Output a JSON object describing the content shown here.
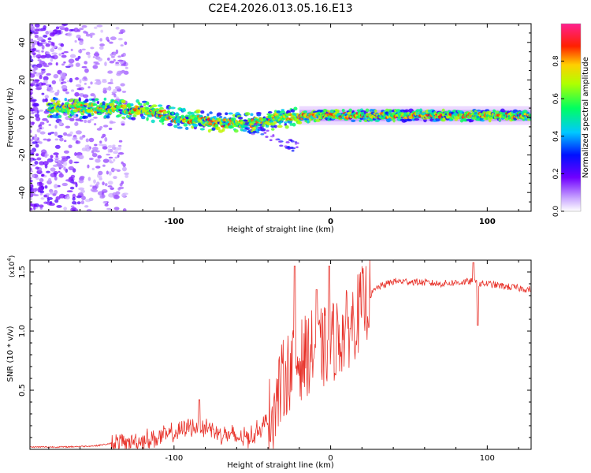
{
  "title": "C2E4.2026.013.05.16.E13",
  "chart_data": [
    {
      "type": "heatmap",
      "xlabel": "Height of straight line (km)",
      "ylabel": "Frequency (Hz)",
      "xlim": [
        -192,
        128
      ],
      "ylim": [
        -50,
        50
      ],
      "xticks": [
        -100,
        0,
        100
      ],
      "yticks": [
        -40,
        -20,
        0,
        20,
        40
      ],
      "colorbar": {
        "label": "Normalized spectral amplitude",
        "ticks": [
          "0.0",
          "0.2",
          "0.4",
          "0.6",
          "0.8"
        ],
        "tick_values": [
          0.0,
          0.2,
          0.4,
          0.6,
          0.8
        ],
        "range": [
          0,
          1
        ],
        "colors": [
          "#ffffff",
          "#8000ff",
          "#0000ff",
          "#00ffff",
          "#00ff00",
          "#ffff00",
          "#ff0000",
          "#ff00ff"
        ]
      },
      "ridge": {
        "x": [
          -180,
          -160,
          -140,
          -120,
          -100,
          -80,
          -60,
          -40,
          -30,
          -20,
          -10,
          0,
          20,
          40,
          60,
          80,
          100,
          128
        ],
        "frequency": [
          5,
          5,
          5,
          4,
          0,
          -2,
          -3,
          -2,
          0,
          0,
          1,
          1,
          1,
          1,
          1,
          1,
          1,
          1
        ]
      }
    },
    {
      "type": "line",
      "xlabel": "Height of straight line (km)",
      "ylabel": "SNR (10 * v/v)",
      "multiplier": "(x10",
      "multiplier_exp": "4",
      "multiplier_close": ")",
      "xlim": [
        -192,
        128
      ],
      "ylim": [
        0,
        1.6
      ],
      "xticks": [
        -100,
        0,
        100
      ],
      "yticks": [
        0.5,
        1.0,
        1.5
      ],
      "ytick_labels": [
        "0.5",
        "1.0",
        "1.5"
      ],
      "series": [
        {
          "name": "SNR",
          "color": "#e8342c",
          "x": [
            -192,
            -170,
            -150,
            -140,
            -130,
            -120,
            -110,
            -100,
            -95,
            -90,
            -85,
            -80,
            -75,
            -70,
            -65,
            -60,
            -55,
            -50,
            -45,
            -40,
            -35,
            -30,
            -25,
            -20,
            -15,
            -10,
            -5,
            0,
            5,
            10,
            15,
            20,
            25,
            30,
            40,
            50,
            60,
            70,
            80,
            90,
            95,
            100,
            110,
            128
          ],
          "y": [
            0.02,
            0.02,
            0.03,
            0.05,
            0.06,
            0.08,
            0.1,
            0.13,
            0.16,
            0.2,
            0.18,
            0.2,
            0.16,
            0.14,
            0.12,
            0.1,
            0.1,
            0.12,
            0.18,
            0.25,
            0.4,
            0.6,
            0.7,
            0.75,
            0.8,
            0.85,
            0.85,
            0.9,
            0.95,
            1.0,
            1.1,
            1.2,
            1.3,
            1.37,
            1.42,
            1.42,
            1.41,
            1.4,
            1.41,
            1.42,
            1.4,
            1.4,
            1.38,
            1.35
          ],
          "spikes": [
            {
              "x": -23,
              "y": 1.55
            },
            {
              "x": -9,
              "y": 1.35
            },
            {
              "x": -1,
              "y": 1.55
            },
            {
              "x": 91,
              "y": 1.58
            },
            {
              "x": 94,
              "y": 1.05
            },
            {
              "x": -84,
              "y": 0.42
            }
          ]
        }
      ]
    }
  ]
}
